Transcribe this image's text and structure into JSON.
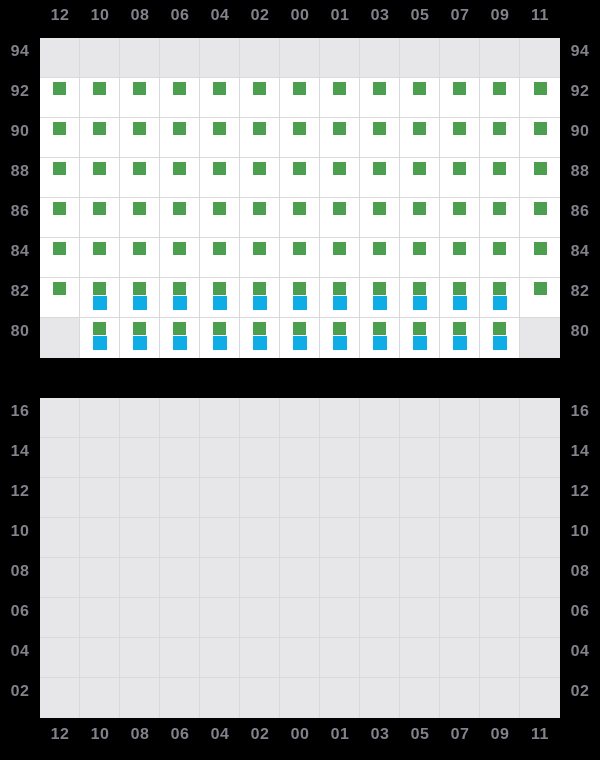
{
  "chart_data": {
    "type": "heatmap",
    "title": "",
    "columns": [
      "12",
      "10",
      "08",
      "06",
      "04",
      "02",
      "00",
      "01",
      "03",
      "05",
      "07",
      "09",
      "11"
    ],
    "cell_state_legend": {
      "x": "gray empty cell",
      "g": "green square mark",
      "gb": "green square over blue square",
      "": "white empty cell"
    },
    "panels": [
      {
        "name": "top",
        "rows": [
          "94",
          "92",
          "90",
          "88",
          "86",
          "84",
          "82",
          "80"
        ],
        "cells": [
          [
            "x",
            "x",
            "x",
            "x",
            "x",
            "x",
            "x",
            "x",
            "x",
            "x",
            "x",
            "x",
            "x"
          ],
          [
            "g",
            "g",
            "g",
            "g",
            "g",
            "g",
            "g",
            "g",
            "g",
            "g",
            "g",
            "g",
            "g"
          ],
          [
            "g",
            "g",
            "g",
            "g",
            "g",
            "g",
            "g",
            "g",
            "g",
            "g",
            "g",
            "g",
            "g"
          ],
          [
            "g",
            "g",
            "g",
            "g",
            "g",
            "g",
            "g",
            "g",
            "g",
            "g",
            "g",
            "g",
            "g"
          ],
          [
            "g",
            "g",
            "g",
            "g",
            "g",
            "g",
            "g",
            "g",
            "g",
            "g",
            "g",
            "g",
            "g"
          ],
          [
            "g",
            "g",
            "g",
            "g",
            "g",
            "g",
            "g",
            "g",
            "g",
            "g",
            "g",
            "g",
            "g"
          ],
          [
            "g",
            "gb",
            "gb",
            "gb",
            "gb",
            "gb",
            "gb",
            "gb",
            "gb",
            "gb",
            "gb",
            "gb",
            "g"
          ],
          [
            "x",
            "gb",
            "gb",
            "gb",
            "gb",
            "gb",
            "gb",
            "gb",
            "gb",
            "gb",
            "gb",
            "gb",
            "x"
          ]
        ]
      },
      {
        "name": "bottom",
        "rows": [
          "16",
          "14",
          "12",
          "10",
          "08",
          "06",
          "04",
          "02"
        ],
        "cells": [
          [
            "x",
            "x",
            "x",
            "x",
            "x",
            "x",
            "x",
            "x",
            "x",
            "x",
            "x",
            "x",
            "x"
          ],
          [
            "x",
            "x",
            "x",
            "x",
            "x",
            "x",
            "x",
            "x",
            "x",
            "x",
            "x",
            "x",
            "x"
          ],
          [
            "x",
            "x",
            "x",
            "x",
            "x",
            "x",
            "x",
            "x",
            "x",
            "x",
            "x",
            "x",
            "x"
          ],
          [
            "x",
            "x",
            "x",
            "x",
            "x",
            "x",
            "x",
            "x",
            "x",
            "x",
            "x",
            "x",
            "x"
          ],
          [
            "x",
            "x",
            "x",
            "x",
            "x",
            "x",
            "x",
            "x",
            "x",
            "x",
            "x",
            "x",
            "x"
          ],
          [
            "x",
            "x",
            "x",
            "x",
            "x",
            "x",
            "x",
            "x",
            "x",
            "x",
            "x",
            "x",
            "x"
          ],
          [
            "x",
            "x",
            "x",
            "x",
            "x",
            "x",
            "x",
            "x",
            "x",
            "x",
            "x",
            "x",
            "x"
          ],
          [
            "x",
            "x",
            "x",
            "x",
            "x",
            "x",
            "x",
            "x",
            "x",
            "x",
            "x",
            "x",
            "x"
          ]
        ]
      }
    ],
    "colors": {
      "green": "#4b9f4f",
      "blue": "#0fade5",
      "grid_line": "#d9d9d9",
      "cell_white": "#ffffff",
      "cell_gray": "#e7e7e9",
      "background": "#000000",
      "label_text": "#82828c"
    }
  }
}
